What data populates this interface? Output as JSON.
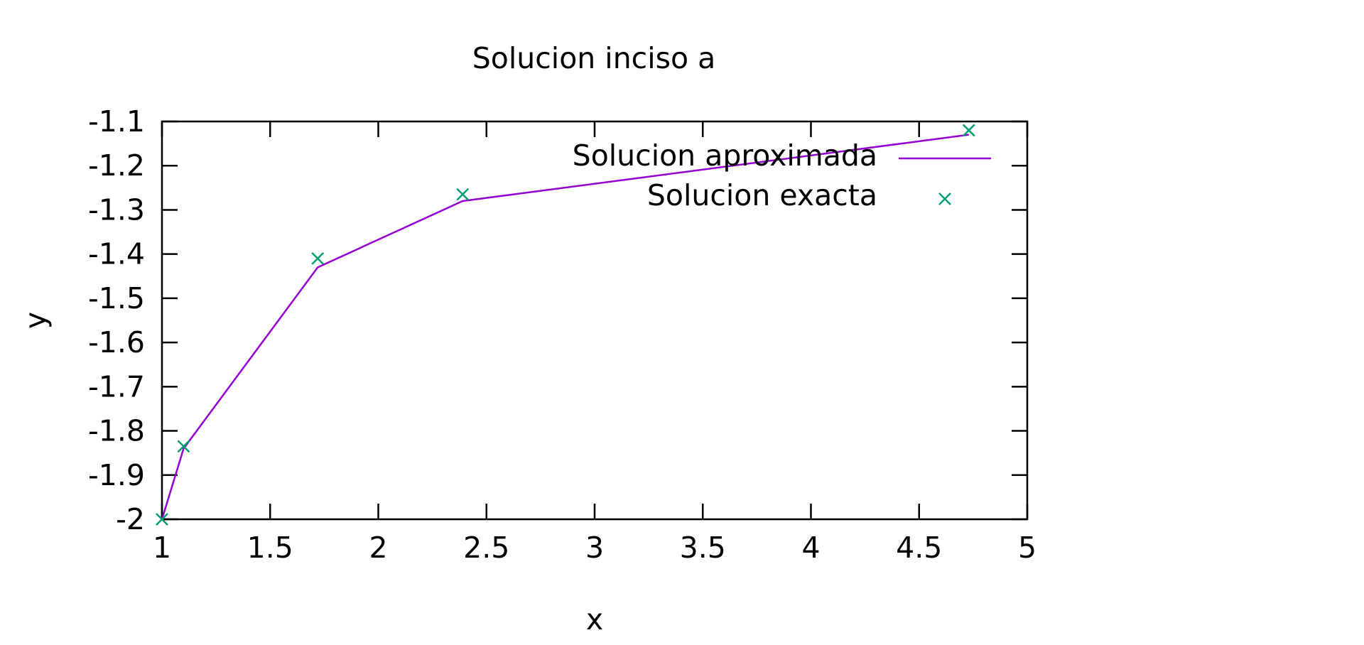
{
  "chart_data": {
    "type": "line",
    "title": "Solucion inciso a",
    "xlabel": "x",
    "ylabel": "y",
    "xlim": [
      1,
      5
    ],
    "ylim": [
      -2,
      -1.1
    ],
    "xticks": [
      "1",
      "1.5",
      "2",
      "2.5",
      "3",
      "3.5",
      "4",
      "4.5",
      "5"
    ],
    "yticks": [
      "-1.1",
      "-1.2",
      "-1.3",
      "-1.4",
      "-1.5",
      "-1.6",
      "-1.7",
      "-1.8",
      "-1.9",
      "-2"
    ],
    "grid": false,
    "legend_position": "top-right",
    "series": [
      {
        "name": "Solucion aproximada",
        "style": "line",
        "color": "#9400d3",
        "x": [
          1.0,
          1.1,
          1.72,
          2.39,
          4.73
        ],
        "y": [
          -2.0,
          -1.84,
          -1.43,
          -1.28,
          -1.13
        ]
      },
      {
        "name": "Solucion exacta",
        "style": "points",
        "marker": "x",
        "color": "#009e73",
        "x": [
          1.0,
          1.1,
          1.72,
          2.39,
          4.73
        ],
        "y": [
          -2.0,
          -1.835,
          -1.41,
          -1.265,
          -1.12
        ]
      }
    ]
  }
}
